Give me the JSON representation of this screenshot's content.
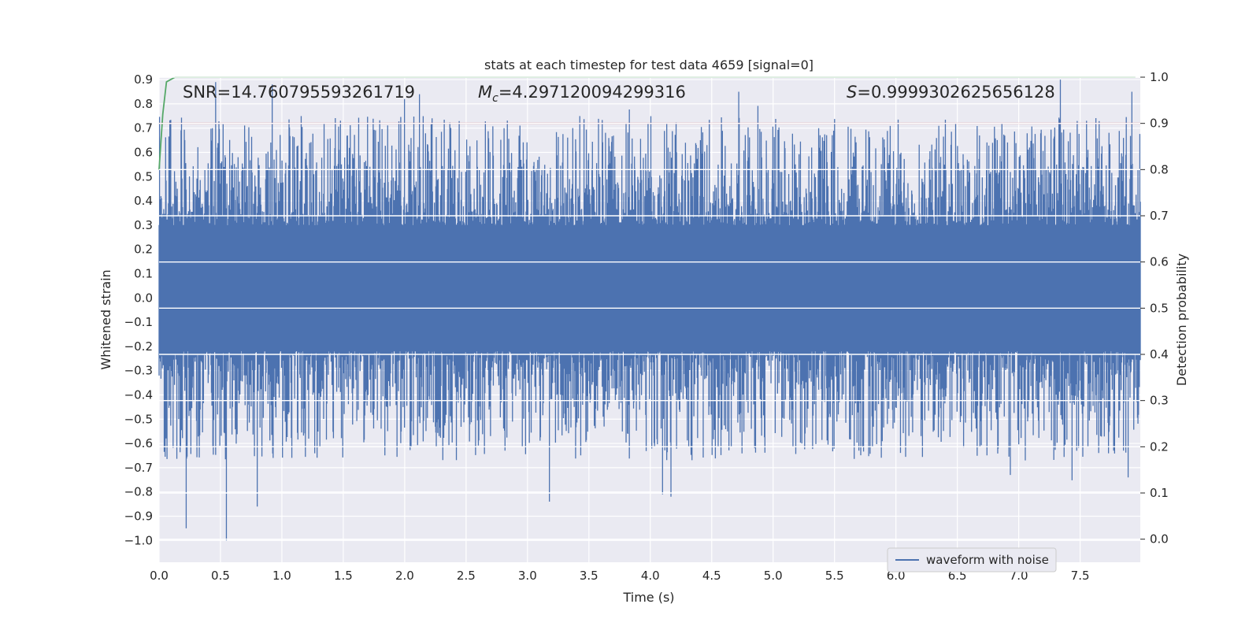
{
  "chart_data": {
    "type": "line",
    "title": "stats at each timestep for test data 4659 [signal=0]",
    "xlabel": "Time (s)",
    "ylabel": "Whitened strain",
    "y2label": "Detection probability",
    "xlim": [
      0.0,
      7.99
    ],
    "ylim": [
      -1.09,
      0.91
    ],
    "y2lim": [
      -0.05,
      1.0
    ],
    "xticks": [
      "0.0",
      "0.5",
      "1.0",
      "1.5",
      "2.0",
      "2.5",
      "3.0",
      "3.5",
      "4.0",
      "4.5",
      "5.0",
      "5.5",
      "6.0",
      "6.5",
      "7.0",
      "7.5"
    ],
    "yticks": [
      "0.9",
      "0.8",
      "0.7",
      "0.6",
      "0.5",
      "0.4",
      "0.3",
      "0.2",
      "0.1",
      "0.0",
      "−0.1",
      "−0.2",
      "−0.3",
      "−0.4",
      "−0.5",
      "−0.6",
      "−0.7",
      "−0.8",
      "−0.9",
      "−1.0"
    ],
    "y2ticks": [
      "1.0",
      "0.9",
      "0.8",
      "0.7",
      "0.6",
      "0.5",
      "0.4",
      "0.3",
      "0.2",
      "0.1",
      "0.0"
    ],
    "grid": true,
    "legend_placement": "lower-right",
    "series": [
      {
        "name": "waveform with noise",
        "axis": "left",
        "color": "#4c72b0",
        "amplitude_range": [
          -1.0,
          0.9
        ],
        "peaks": [
          {
            "x": 0.46,
            "y": 0.89
          },
          {
            "x": 0.92,
            "y": 0.88
          },
          {
            "x": 2.0,
            "y": 0.82
          },
          {
            "x": 2.12,
            "y": 0.84
          },
          {
            "x": 4.72,
            "y": 0.85
          },
          {
            "x": 7.34,
            "y": 0.9
          },
          {
            "x": 7.92,
            "y": 0.85
          }
        ],
        "troughs": [
          {
            "x": 0.22,
            "y": -0.95
          },
          {
            "x": 0.55,
            "y": -1.0
          },
          {
            "x": 0.8,
            "y": -0.86
          },
          {
            "x": 3.18,
            "y": -0.84
          },
          {
            "x": 4.1,
            "y": -0.81
          },
          {
            "x": 4.17,
            "y": -0.82
          },
          {
            "x": 6.93,
            "y": -0.73
          },
          {
            "x": 7.89,
            "y": -0.74
          }
        ]
      },
      {
        "name": "",
        "axis": "right",
        "color": "#55a868",
        "x": [
          0.0,
          0.03,
          0.06,
          0.13,
          0.3,
          1.0,
          3.0,
          5.0,
          7.0,
          7.95
        ],
        "y": [
          0.8,
          0.92,
          0.99,
          1.0,
          1.0,
          1.0,
          1.0,
          1.0,
          1.0,
          1.0
        ]
      },
      {
        "name": "",
        "axis": "right",
        "color": "#c44e52",
        "x": [
          0.0,
          7.99
        ],
        "y": [
          0.9,
          0.9
        ]
      }
    ],
    "annotations": {
      "snr": "SNR=14.760795593261719",
      "mc_symbol": "M",
      "mc_sub": "c",
      "mc_value": "=4.297120094299316",
      "s_symbol": "S",
      "s_value": "=0.9999302625656128"
    },
    "colors": {
      "plot_background": "#eaeaf2",
      "grid": "#ffffff",
      "waveform": "#4c72b0",
      "probability": "#55a868",
      "threshold": "#c44e52"
    }
  }
}
